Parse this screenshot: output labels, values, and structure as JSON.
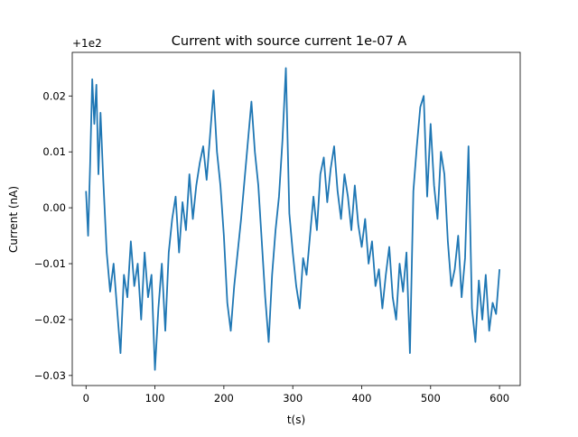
{
  "chart_data": {
    "type": "line",
    "title": "Current with source current 1e-07 A",
    "xlabel": "t(s)",
    "ylabel": "Current (nA)",
    "offset_label": "+1e2",
    "xlim": [
      -20,
      630
    ],
    "ylim": [
      -0.0318,
      0.0278
    ],
    "xticks": [
      0,
      100,
      200,
      300,
      400,
      500,
      600
    ],
    "yticks": [
      -0.03,
      -0.02,
      -0.01,
      0.0,
      0.01,
      0.02
    ],
    "ytick_labels": [
      "−0.03",
      "−0.02",
      "−0.01",
      "0.00",
      "0.01",
      "0.02"
    ],
    "grid": false,
    "series": [
      {
        "color": "#1f77b4",
        "x": [
          0,
          3,
          6,
          9,
          12,
          15,
          18,
          21,
          25,
          30,
          35,
          40,
          45,
          50,
          55,
          60,
          65,
          70,
          75,
          80,
          85,
          90,
          95,
          100,
          105,
          110,
          115,
          120,
          125,
          130,
          135,
          140,
          145,
          150,
          155,
          160,
          165,
          170,
          175,
          180,
          185,
          190,
          195,
          200,
          205,
          210,
          215,
          220,
          225,
          230,
          235,
          240,
          245,
          250,
          255,
          260,
          265,
          270,
          275,
          280,
          285,
          290,
          295,
          300,
          305,
          310,
          315,
          320,
          325,
          330,
          335,
          340,
          345,
          350,
          355,
          360,
          365,
          370,
          375,
          380,
          385,
          390,
          395,
          400,
          405,
          410,
          415,
          420,
          425,
          430,
          435,
          440,
          445,
          450,
          455,
          460,
          465,
          470,
          475,
          480,
          485,
          490,
          495,
          500,
          505,
          510,
          515,
          520,
          525,
          530,
          535,
          540,
          545,
          550,
          555,
          560,
          565,
          570,
          575,
          580,
          585,
          590,
          595,
          600
        ],
        "y": [
          0.003,
          -0.005,
          0.008,
          0.023,
          0.015,
          0.022,
          0.006,
          0.017,
          0.005,
          -0.008,
          -0.015,
          -0.01,
          -0.018,
          -0.026,
          -0.012,
          -0.016,
          -0.006,
          -0.014,
          -0.01,
          -0.02,
          -0.008,
          -0.016,
          -0.012,
          -0.029,
          -0.018,
          -0.01,
          -0.022,
          -0.008,
          -0.002,
          0.002,
          -0.008,
          0.001,
          -0.004,
          0.006,
          -0.002,
          0.004,
          0.008,
          0.011,
          0.005,
          0.013,
          0.021,
          0.01,
          0.004,
          -0.005,
          -0.017,
          -0.022,
          -0.014,
          -0.008,
          -0.002,
          0.005,
          0.012,
          0.019,
          0.01,
          0.004,
          -0.006,
          -0.016,
          -0.024,
          -0.012,
          -0.004,
          0.002,
          0.012,
          0.025,
          -0.001,
          -0.008,
          -0.014,
          -0.018,
          -0.009,
          -0.012,
          -0.005,
          0.002,
          -0.004,
          0.006,
          0.009,
          0.001,
          0.007,
          0.011,
          0.003,
          -0.002,
          0.006,
          0.002,
          -0.004,
          0.004,
          -0.003,
          -0.007,
          -0.002,
          -0.01,
          -0.006,
          -0.014,
          -0.011,
          -0.018,
          -0.012,
          -0.007,
          -0.016,
          -0.02,
          -0.01,
          -0.015,
          -0.008,
          -0.026,
          0.003,
          0.011,
          0.018,
          0.02,
          0.002,
          0.015,
          0.004,
          -0.002,
          0.01,
          0.006,
          -0.006,
          -0.014,
          -0.011,
          -0.005,
          -0.016,
          -0.009,
          0.011,
          -0.018,
          -0.024,
          -0.013,
          -0.02,
          -0.012,
          -0.022,
          -0.017,
          -0.019,
          -0.011
        ]
      }
    ]
  }
}
